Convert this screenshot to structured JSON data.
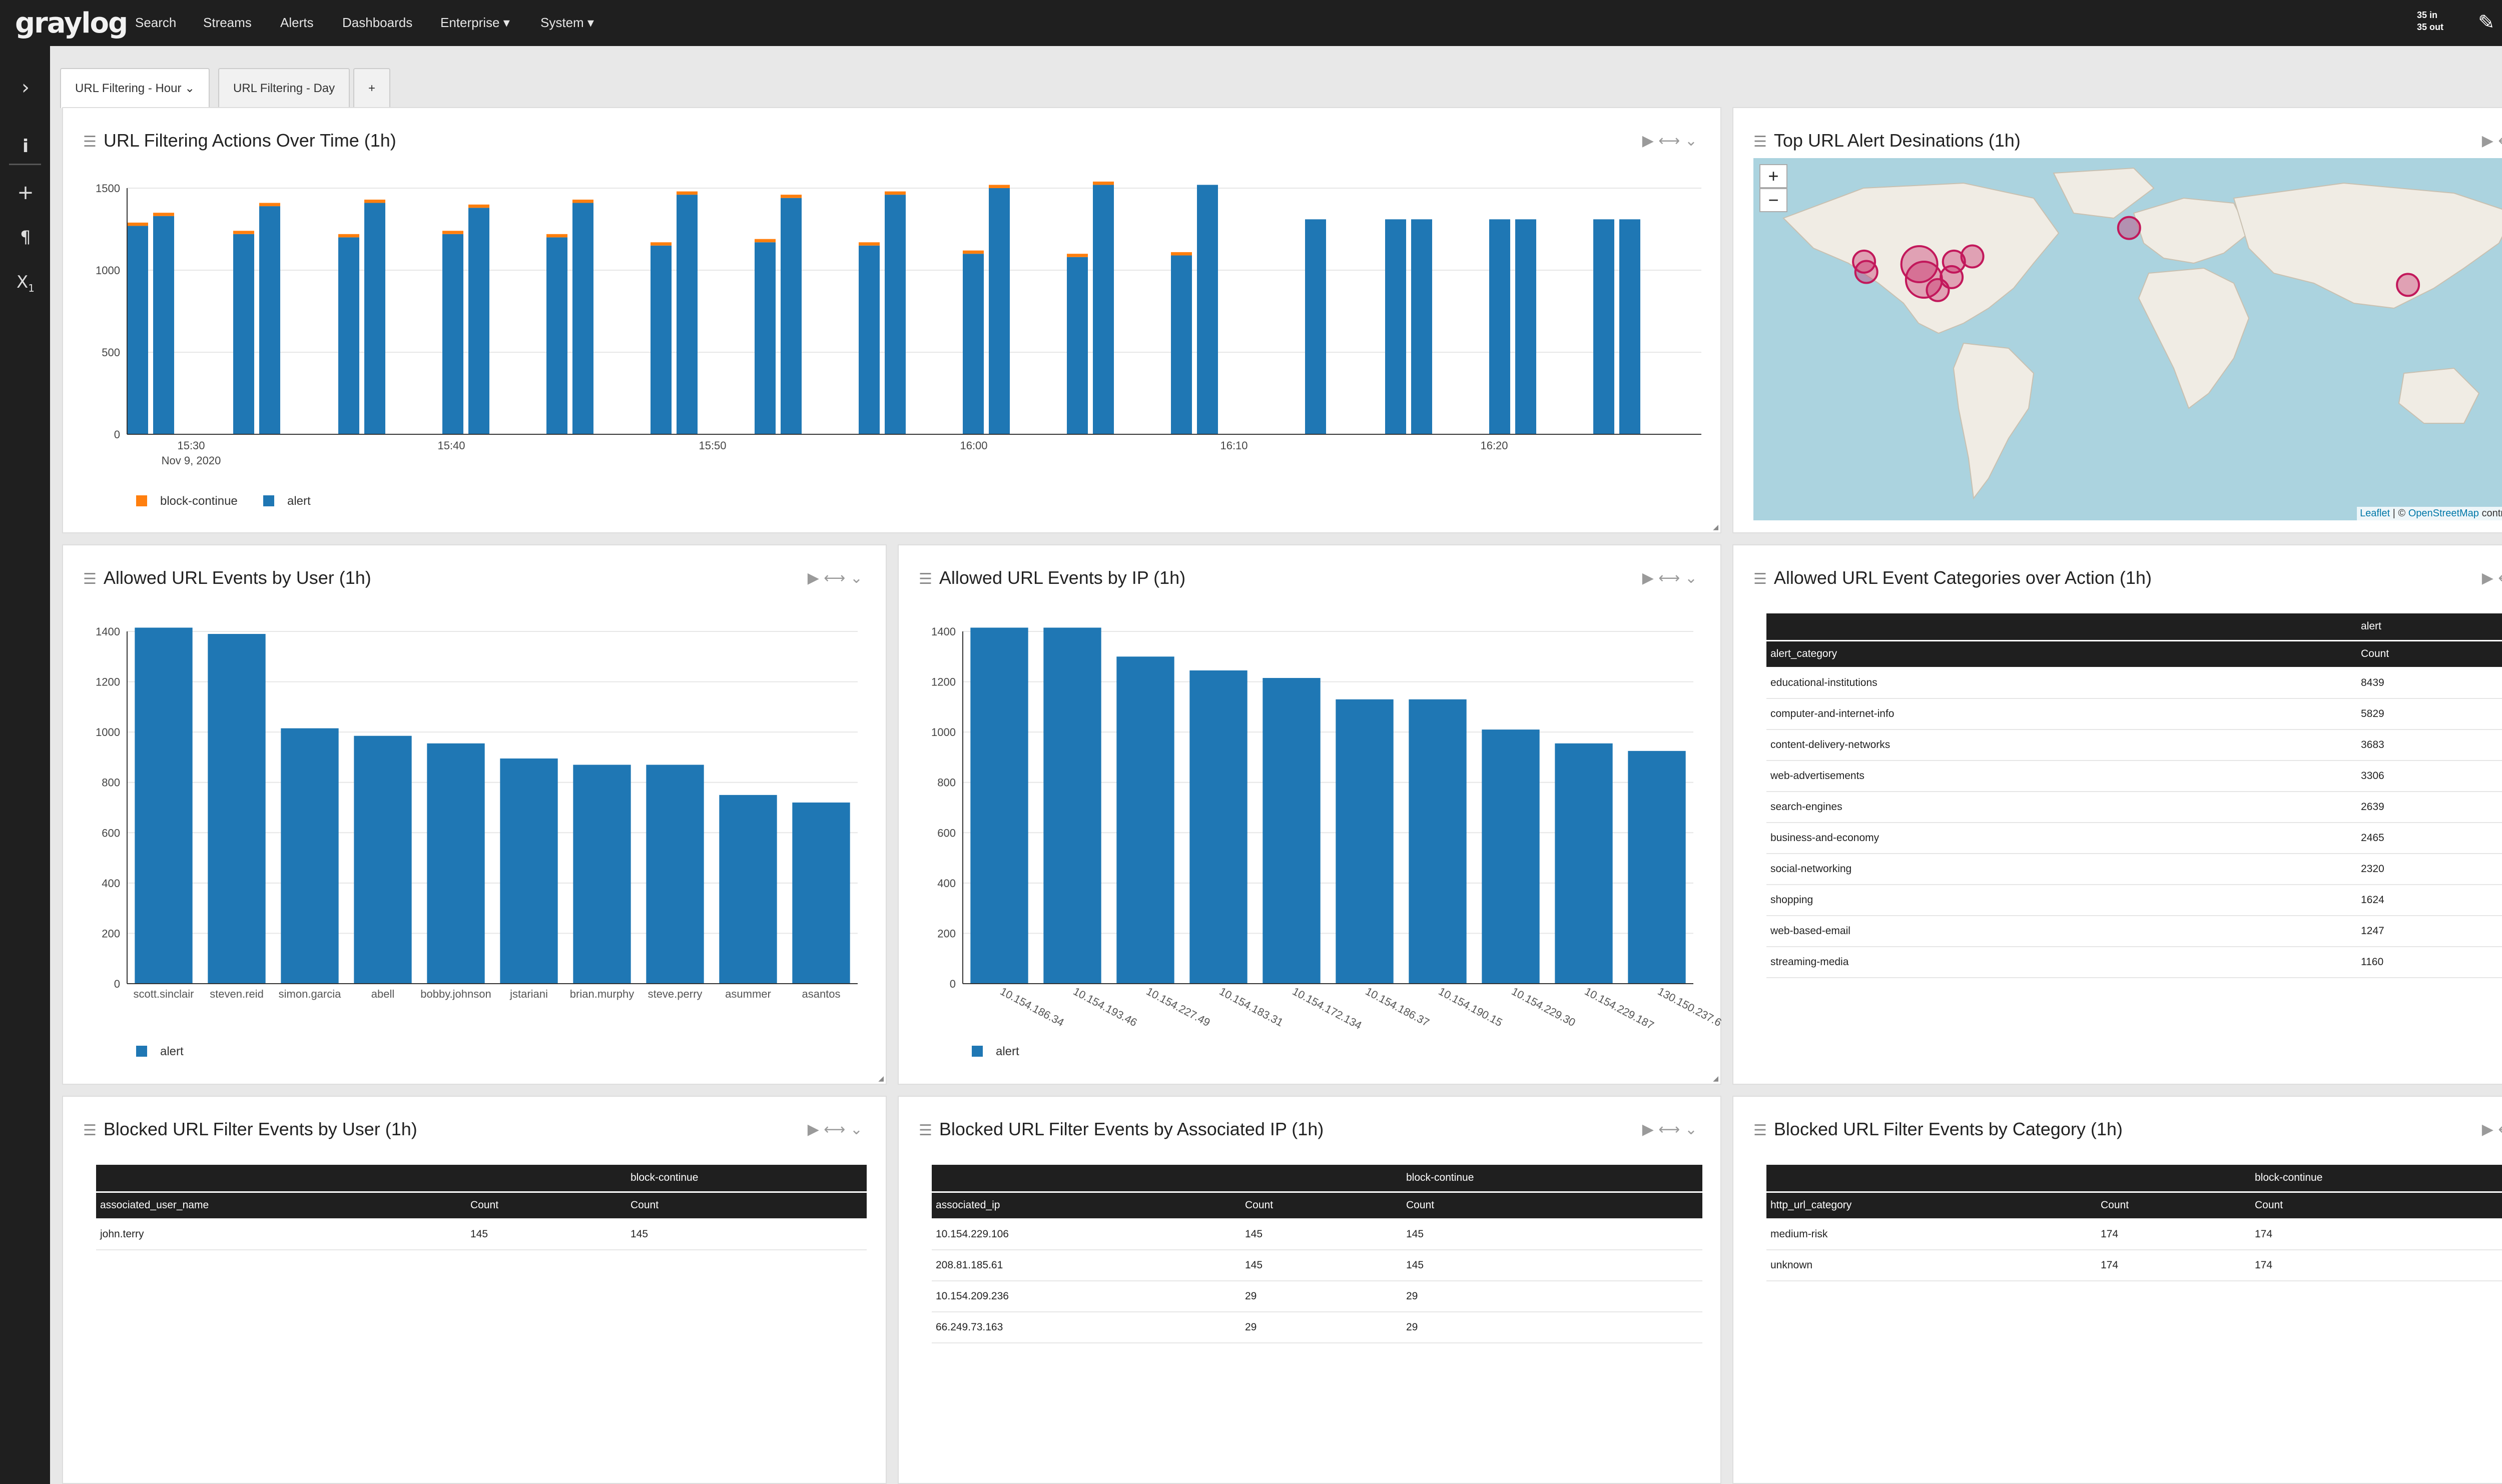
{
  "brand": {
    "logo_text": "graylog"
  },
  "nav": {
    "items": [
      "Search",
      "Streams",
      "Alerts",
      "Dashboards",
      "Enterprise ▾",
      "System ▾"
    ]
  },
  "throughput": {
    "in": "35 in",
    "out": "35 out"
  },
  "tabs": [
    "URL Filtering - Hour",
    "URL Filtering - Day",
    "+"
  ],
  "icons": {
    "sidebar": [
      "chevron-right-icon",
      "info-icon",
      "plus-icon",
      "pilcrow-icon",
      "subscript-icon"
    ],
    "top": [
      "edit-icon",
      "help-icon"
    ]
  },
  "colors": {
    "alert": "#1f77b4",
    "block_continue": "#ff7f0e",
    "topbar": "#1f1f1f",
    "map_marker": "#c2185b"
  },
  "panels": {
    "over_time": {
      "title": "URL Filtering Actions Over Time (1h)"
    },
    "map": {
      "title": "Top URL Alert Desinations (1h)",
      "zoom_in": "+",
      "zoom_out": "−",
      "attribution_leaflet": "Leaflet",
      "attribution_sep": " | © ",
      "attribution_osm": "OpenStreetMap",
      "attribution_tail": " contributors"
    },
    "by_user": {
      "title": "Allowed URL Events by User (1h)"
    },
    "by_ip": {
      "title": "Allowed URL Events by IP (1h)"
    },
    "categories": {
      "title": "Allowed URL Event Categories over Action (1h)",
      "group_header": "alert",
      "col1": "alert_category",
      "col2": "Count",
      "rows": [
        [
          "educational-institutions",
          "8439"
        ],
        [
          "computer-and-internet-info",
          "5829"
        ],
        [
          "content-delivery-networks",
          "3683"
        ],
        [
          "web-advertisements",
          "3306"
        ],
        [
          "search-engines",
          "2639"
        ],
        [
          "business-and-economy",
          "2465"
        ],
        [
          "social-networking",
          "2320"
        ],
        [
          "shopping",
          "1624"
        ],
        [
          "web-based-email",
          "1247"
        ],
        [
          "streaming-media",
          "1160"
        ]
      ]
    },
    "blocked_user": {
      "title": "Blocked URL Filter Events by User (1h)",
      "group_header": "block-continue",
      "col1": "associated_user_name",
      "col2": "Count",
      "col3": "Count",
      "rows": [
        [
          "john.terry",
          "145",
          "145"
        ]
      ]
    },
    "blocked_ip": {
      "title": "Blocked URL Filter Events by Associated IP (1h)",
      "group_header": "block-continue",
      "col1": "associated_ip",
      "col2": "Count",
      "col3": "Count",
      "rows": [
        [
          "10.154.229.106",
          "145",
          "145"
        ],
        [
          "208.81.185.61",
          "145",
          "145"
        ],
        [
          "10.154.209.236",
          "29",
          "29"
        ],
        [
          "66.249.73.163",
          "29",
          "29"
        ]
      ]
    },
    "blocked_cat": {
      "title": "Blocked URL Filter Events by Category (1h)",
      "group_header": "block-continue",
      "col1": "http_url_category",
      "col2": "Count",
      "col3": "Count",
      "rows": [
        [
          "medium-risk",
          "174",
          "174"
        ],
        [
          "unknown",
          "174",
          "174"
        ]
      ]
    }
  },
  "map_markers": [
    {
      "place": "US West",
      "lat": 40,
      "lon": -122
    },
    {
      "place": "US West 2",
      "lat": 36,
      "lon": -121
    },
    {
      "place": "US Central",
      "lat": 39,
      "lon": -98
    },
    {
      "place": "US Central 2",
      "lat": 33,
      "lon": -96
    },
    {
      "place": "US East",
      "lat": 40,
      "lon": -83
    },
    {
      "place": "US East 2",
      "lat": 42,
      "lon": -75
    },
    {
      "place": "US Southeast",
      "lat": 34,
      "lon": -84
    },
    {
      "place": "US South",
      "lat": 29,
      "lon": -90
    },
    {
      "place": "Ireland",
      "lat": 53,
      "lon": -7
    },
    {
      "place": "China",
      "lat": 31,
      "lon": 114
    }
  ],
  "chart_data": [
    {
      "type": "bar",
      "stacked": true,
      "x_tick_labels": [
        "15:30",
        "15:40",
        "15:50",
        "16:00",
        "16:10",
        "16:20"
      ],
      "x_date_label": "Nov 9, 2020",
      "y_ticks": [
        0,
        500,
        1000,
        1500
      ],
      "ylim": [
        0,
        1500
      ],
      "legend": "bottom-left",
      "series": [
        {
          "name": "block-continue",
          "values": [
            20,
            20,
            20,
            20,
            20,
            20,
            20,
            20,
            20,
            20,
            20,
            20,
            20,
            20,
            20,
            20,
            20,
            20,
            20,
            20,
            20,
            0,
            0,
            0,
            0,
            0,
            0,
            0,
            0
          ]
        },
        {
          "name": "alert",
          "values": [
            1270,
            1330,
            1220,
            1390,
            1200,
            1410,
            1220,
            1380,
            1200,
            1410,
            1150,
            1460,
            1170,
            1440,
            1150,
            1460,
            1100,
            1500,
            1080,
            1520,
            1090,
            1520,
            1310,
            1310,
            1310,
            1310,
            1310,
            1310,
            1310
          ]
        }
      ]
    },
    {
      "type": "bar",
      "categories": [
        "scott.sinclair",
        "steven.reid",
        "simon.garcia",
        "abell",
        "bobby.johnson",
        "jstariani",
        "brian.murphy",
        "steve.perry",
        "asummer",
        "asantos"
      ],
      "series": [
        {
          "name": "alert",
          "values": [
            1415,
            1390,
            1015,
            985,
            955,
            895,
            870,
            870,
            750,
            720
          ]
        }
      ],
      "ylim": [
        0,
        1400
      ],
      "y_ticks": [
        0,
        200,
        400,
        600,
        800,
        1000,
        1200,
        1400
      ],
      "legend": "bottom-left"
    },
    {
      "type": "bar",
      "categories": [
        "10.154.186.34",
        "10.154.193.46",
        "10.154.227.49",
        "10.154.183.31",
        "10.154.172.134",
        "10.154.186.37",
        "10.154.190.15",
        "10.154.229.30",
        "10.154.229.187",
        "130.150.237.6"
      ],
      "series": [
        {
          "name": "alert",
          "values": [
            1415,
            1415,
            1300,
            1245,
            1215,
            1130,
            1130,
            1010,
            955,
            925
          ]
        }
      ],
      "ylim": [
        0,
        1400
      ],
      "y_ticks": [
        0,
        200,
        400,
        600,
        800,
        1000,
        1200,
        1400
      ],
      "legend": "bottom-left"
    }
  ]
}
